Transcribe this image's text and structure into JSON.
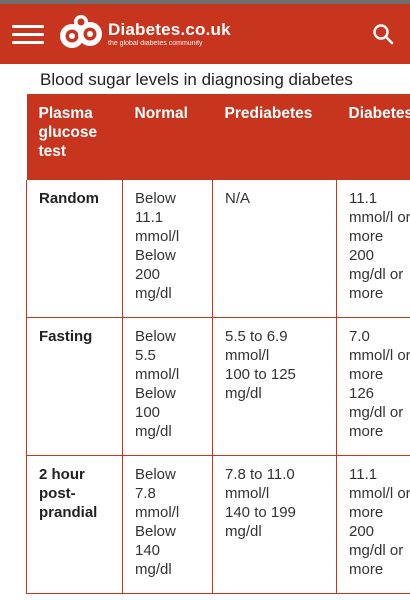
{
  "header": {
    "brand_name": "Diabetes.co.uk",
    "brand_tagline": "the global diabetes community",
    "colors": {
      "brand_red": "#c8351f",
      "white": "#ffffff"
    },
    "icons": [
      "menu-icon",
      "logo-icon",
      "search-icon"
    ]
  },
  "page": {
    "title": "Blood sugar levels in diagnosing diabetes"
  },
  "table": {
    "headers": [
      "Plasma\nglucose\ntest",
      "Normal",
      "Prediabetes",
      "Diabetes"
    ],
    "rows": [
      {
        "test": "Random",
        "normal": "Below\n11.1\nmmol/l\nBelow\n200\nmg/dl",
        "prediabetes": "N/A",
        "diabetes": "11.1\nmmol/l or\nmore\n200\nmg/dl or\nmore"
      },
      {
        "test": "Fasting",
        "normal": "Below\n5.5\nmmol/l\nBelow\n100\nmg/dl",
        "prediabetes": "5.5 to 6.9\nmmol/l\n100 to 125\nmg/dl",
        "diabetes": "7.0\nmmol/l or\nmore\n126\nmg/dl or\nmore"
      },
      {
        "test": "2 hour\npost-\nprandial",
        "normal": "Below\n7.8\nmmol/l\nBelow\n140\nmg/dl",
        "prediabetes": "7.8 to 11.0\nmmol/l\n140 to 199\nmg/dl",
        "diabetes": "11.1\nmmol/l or\nmore\n200\nmg/dl or\nmore"
      }
    ]
  }
}
